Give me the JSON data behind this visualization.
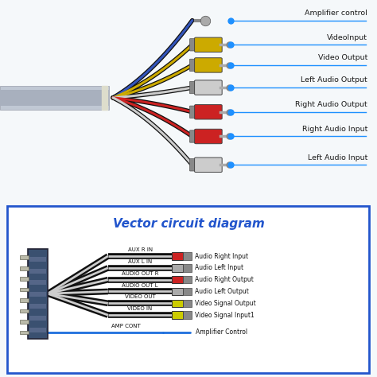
{
  "title_diagram": "Vector circuit diagram",
  "title_color": "#2255cc",
  "top_bg": "#f0f4fa",
  "bot_bg": "#ffffff",
  "top_labels": [
    "Amplifier control",
    "VideoInput",
    "Video Output",
    "Left Audio Output",
    "Right Audio Output",
    "Right Audio Input",
    "Left Audio Input"
  ],
  "wire_colors_top": [
    "#3355bb",
    "#ccaa00",
    "#ccaa00",
    "#cccccc",
    "#cc2222",
    "#cc2222",
    "#cccccc"
  ],
  "plug_colors": [
    null,
    "#ccaa00",
    "#ccaa00",
    "#cccccc",
    "#cc2222",
    "#cc2222",
    "#cccccc"
  ],
  "wires": [
    {
      "label": "AUX R IN",
      "line_color": "#cc0000",
      "conn_color": "#cc2222",
      "right_label": "Audio Right Input"
    },
    {
      "label": "AUX L IN",
      "line_color": "#888888",
      "conn_color": "#aaaaaa",
      "right_label": "Audio Left Input"
    },
    {
      "label": "AUDIO OUT R",
      "line_color": "#cc0000",
      "conn_color": "#cc2222",
      "right_label": "Audio Right Output"
    },
    {
      "label": "AUDIO OUT L",
      "line_color": "#888888",
      "conn_color": "#aaaaaa",
      "right_label": "Audio Left Output"
    },
    {
      "label": "VIDEO OUT",
      "line_color": "#bbaa00",
      "conn_color": "#cccc00",
      "right_label": "Video Signal Output"
    },
    {
      "label": "VIDEO IN",
      "line_color": "#bbaa00",
      "conn_color": "#cccc00",
      "right_label": "Video Signal Input1"
    },
    {
      "label": "AMP CONT",
      "line_color": "#1e90ff",
      "conn_color": null,
      "right_label": "Amplifier Control"
    }
  ],
  "dot_color": "#1e90ff",
  "line_color": "#1e90ff",
  "box_color": "#2255cc"
}
